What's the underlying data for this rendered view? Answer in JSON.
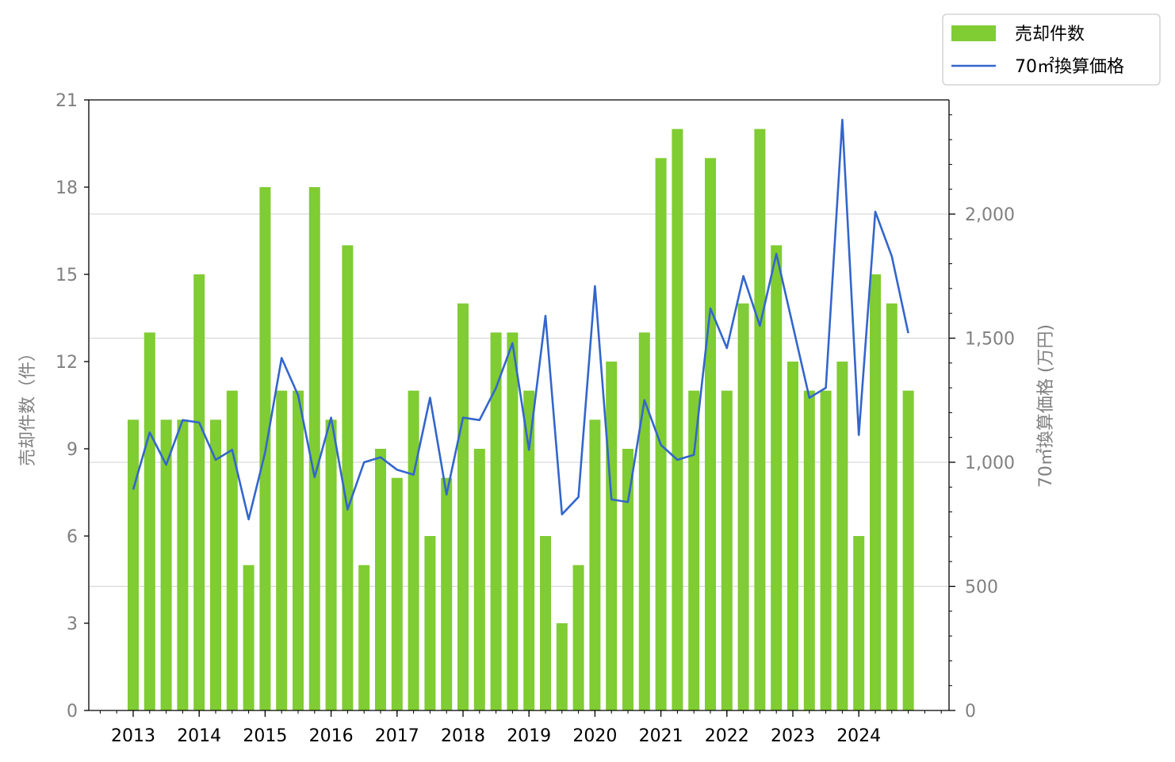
{
  "chart_data": {
    "type": "bar",
    "x_tick_labels": [
      "2013",
      "2014",
      "2015",
      "2016",
      "2017",
      "2018",
      "2019",
      "2020",
      "2021",
      "2022",
      "2023",
      "2024"
    ],
    "x_minor_ticks_per_year": 4,
    "legend": {
      "position": "top-right",
      "items": [
        {
          "label": "売却件数",
          "kind": "bar"
        },
        {
          "label": "70㎡換算価格",
          "kind": "line"
        }
      ]
    },
    "left_axis": {
      "label": "売却件数（件）",
      "ylim": [
        0,
        21
      ],
      "ticks": [
        "0",
        "3",
        "6",
        "9",
        "12",
        "15",
        "18",
        "21"
      ]
    },
    "right_axis": {
      "label": "70㎡換算価格 (万円)",
      "ylim": [
        0,
        2460
      ],
      "ticks": [
        {
          "value": 0,
          "label": "0"
        },
        {
          "value": 500,
          "label": "500"
        },
        {
          "value": 1000,
          "label": "1,000"
        },
        {
          "value": 1500,
          "label": "1,500"
        },
        {
          "value": 2000,
          "label": "2,000"
        }
      ],
      "minor_step": 100,
      "grid": true
    },
    "series": [
      {
        "name": "売却件数",
        "axis": "left",
        "color": "#80cc33",
        "values": [
          10,
          13,
          10,
          10,
          15,
          10,
          11,
          5,
          18,
          11,
          11,
          18,
          10,
          16,
          5,
          9,
          8,
          11,
          6,
          8,
          14,
          9,
          13,
          13,
          11,
          6,
          3,
          5,
          10,
          12,
          9,
          13,
          19,
          20,
          11,
          19,
          11,
          14,
          20,
          16,
          12,
          11,
          11,
          12,
          6,
          15,
          14,
          11
        ]
      },
      {
        "name": "70㎡換算価格",
        "axis": "right",
        "color": "#3366cc",
        "values": [
          890,
          1120,
          990,
          1170,
          1160,
          1010,
          1050,
          770,
          1040,
          1420,
          1270,
          940,
          1180,
          810,
          1000,
          1020,
          970,
          950,
          1260,
          870,
          1180,
          1170,
          1300,
          1480,
          1050,
          1590,
          790,
          860,
          1710,
          850,
          840,
          1250,
          1070,
          1010,
          1030,
          1620,
          1460,
          1750,
          1550,
          1840,
          1550,
          1260,
          1300,
          2380,
          1110,
          2010,
          1830,
          1520
        ]
      }
    ]
  }
}
